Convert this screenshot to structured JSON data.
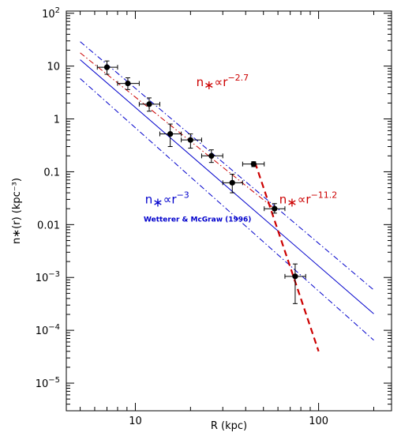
{
  "chart_data": {
    "type": "scatter",
    "xlabel": "R (kpc)",
    "ylabel": "n∗(r)   (kpc⁻³)",
    "xscale": "log",
    "yscale": "log",
    "xlim": [
      4.2,
      250
    ],
    "ylim": [
      3e-06,
      110
    ],
    "x_ticks": [
      {
        "value": 10,
        "label": "10"
      },
      {
        "value": 100,
        "label": "100"
      }
    ],
    "y_ticks": [
      {
        "value": 100,
        "base": "10",
        "exp": "2"
      },
      {
        "value": 10,
        "base": "10",
        "exp": ""
      },
      {
        "value": 1,
        "base": "1",
        "exp": ""
      },
      {
        "value": 0.1,
        "base": "0.1",
        "exp": ""
      },
      {
        "value": 0.01,
        "base": "0.01",
        "exp": ""
      },
      {
        "value": 0.001,
        "base": "10",
        "exp": "−3"
      },
      {
        "value": 0.0001,
        "base": "10",
        "exp": "−4"
      },
      {
        "value": 1e-05,
        "base": "10",
        "exp": "−5"
      }
    ],
    "points": [
      {
        "x": 7.0,
        "y": 9.5,
        "xerr": [
          6.2,
          8.0
        ],
        "yerr": [
          7.0,
          12.5
        ]
      },
      {
        "x": 9.1,
        "y": 4.7,
        "xerr": [
          8.0,
          10.5
        ],
        "yerr": [
          3.6,
          6.0
        ]
      },
      {
        "x": 11.9,
        "y": 1.9,
        "xerr": [
          10.5,
          13.6
        ],
        "yerr": [
          1.4,
          2.5
        ]
      },
      {
        "x": 15.5,
        "y": 0.52,
        "xerr": [
          13.6,
          17.8
        ],
        "yerr": [
          0.3,
          0.8
        ]
      },
      {
        "x": 20.0,
        "y": 0.4,
        "xerr": [
          17.8,
          23.0
        ],
        "yerr": [
          0.28,
          0.52
        ]
      },
      {
        "x": 26.0,
        "y": 0.2,
        "xerr": [
          23.0,
          30.0
        ],
        "yerr": [
          0.15,
          0.26
        ]
      },
      {
        "x": 33.8,
        "y": 0.062,
        "xerr": [
          30.0,
          38.5
        ],
        "yerr": [
          0.04,
          0.09
        ]
      },
      {
        "x": 44.2,
        "y": 0.14,
        "xerr": [
          38.5,
          50.5
        ],
        "yerr": [
          0.125,
          0.155
        ]
      },
      {
        "x": 57.5,
        "y": 0.02,
        "xerr": [
          50.5,
          65.5
        ],
        "yerr": [
          0.0165,
          0.025
        ]
      },
      {
        "x": 74.5,
        "y": 0.00105,
        "xerr": [
          65.5,
          85.0
        ],
        "yerr": [
          0.00032,
          0.0018
        ]
      }
    ],
    "lines": [
      {
        "label": "r^-3 fit",
        "color": "#0000cc",
        "dash": "solid",
        "x": [
          5,
          200
        ],
        "y": [
          13.2,
          0.000205
        ]
      },
      {
        "label": "r^-3 upper",
        "color": "#0000cc",
        "dash": "dashdot",
        "x": [
          5,
          200
        ],
        "y": [
          29.0,
          0.00058
        ]
      },
      {
        "label": "r^-3 lower",
        "color": "#0000cc",
        "dash": "dashdot",
        "x": [
          5,
          200
        ],
        "y": [
          5.8,
          6.5e-05
        ]
      },
      {
        "label": "r^-2.7",
        "color": "#cc0000",
        "dash": "dashdot",
        "x": [
          5,
          57.5
        ],
        "y": [
          17.8,
          0.02
        ]
      },
      {
        "label": "r^-11.2",
        "color": "#cc0000",
        "dash": "dashed",
        "width": 2.2,
        "x": [
          45,
          100
        ],
        "y": [
          0.15,
          4e-05
        ]
      }
    ],
    "annotations": [
      {
        "id": "steep",
        "prefix": "n",
        "mid": "∝r",
        "exp": "−2.7",
        "color": "#cc0000",
        "x": 21.5,
        "y": 4.2
      },
      {
        "id": "steeper",
        "prefix": "n",
        "mid": "∝r",
        "exp": "−11.2",
        "color": "#cc0000",
        "x": 61,
        "y": 0.025
      },
      {
        "id": "fit",
        "prefix": "n",
        "mid": "∝r",
        "exp": "−3",
        "color": "#0000cc",
        "x": 11.3,
        "y": 0.025
      }
    ],
    "citation": {
      "text": "Wetterer & McGraw (1996)",
      "color": "#0000cc",
      "x": 11.1,
      "y": 0.0115
    },
    "grid": false,
    "legend": "none"
  }
}
